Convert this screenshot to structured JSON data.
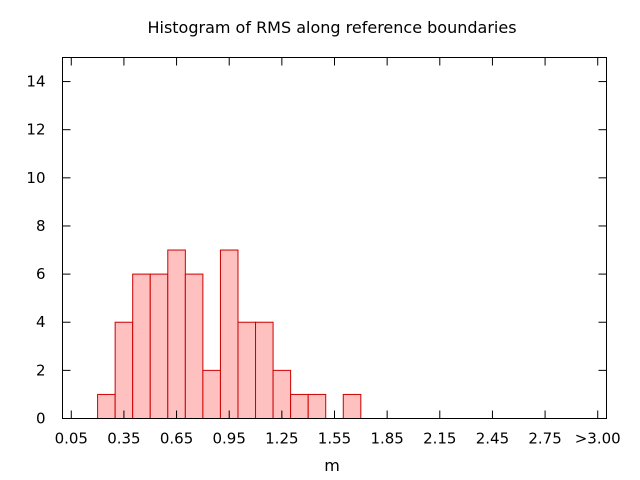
{
  "chart_data": {
    "type": "bar",
    "title": "Histogram of RMS along reference boundaries",
    "xlabel": "m",
    "ylabel": "",
    "bin_width": 0.1,
    "bins": [
      {
        "x": 0.25,
        "value": 1
      },
      {
        "x": 0.35,
        "value": 4
      },
      {
        "x": 0.45,
        "value": 6
      },
      {
        "x": 0.55,
        "value": 6
      },
      {
        "x": 0.65,
        "value": 7
      },
      {
        "x": 0.75,
        "value": 6
      },
      {
        "x": 0.85,
        "value": 2
      },
      {
        "x": 0.95,
        "value": 7
      },
      {
        "x": 1.05,
        "value": 4
      },
      {
        "x": 1.15,
        "value": 4
      },
      {
        "x": 1.25,
        "value": 2
      },
      {
        "x": 1.35,
        "value": 1
      },
      {
        "x": 1.45,
        "value": 1
      },
      {
        "x": 1.65,
        "value": 1
      }
    ],
    "xlim": [
      0.0,
      3.1
    ],
    "ylim": [
      0,
      15
    ],
    "xticks": [
      {
        "value": 0.05,
        "label": "0.05"
      },
      {
        "value": 0.35,
        "label": "0.35"
      },
      {
        "value": 0.65,
        "label": "0.65"
      },
      {
        "value": 0.95,
        "label": "0.95"
      },
      {
        "value": 1.25,
        "label": "1.25"
      },
      {
        "value": 1.55,
        "label": "1.55"
      },
      {
        "value": 1.85,
        "label": "1.85"
      },
      {
        "value": 2.15,
        "label": "2.15"
      },
      {
        "value": 2.45,
        "label": "2.45"
      },
      {
        "value": 2.75,
        "label": "2.75"
      },
      {
        "value": 3.05,
        "label": ">3.00"
      }
    ],
    "yticks": [
      0,
      2,
      4,
      6,
      8,
      10,
      12,
      14
    ],
    "grid": false,
    "colors": {
      "bar_fill": "#ffc0c0",
      "bar_stroke": "#cc0000",
      "axis": "#000000"
    }
  }
}
